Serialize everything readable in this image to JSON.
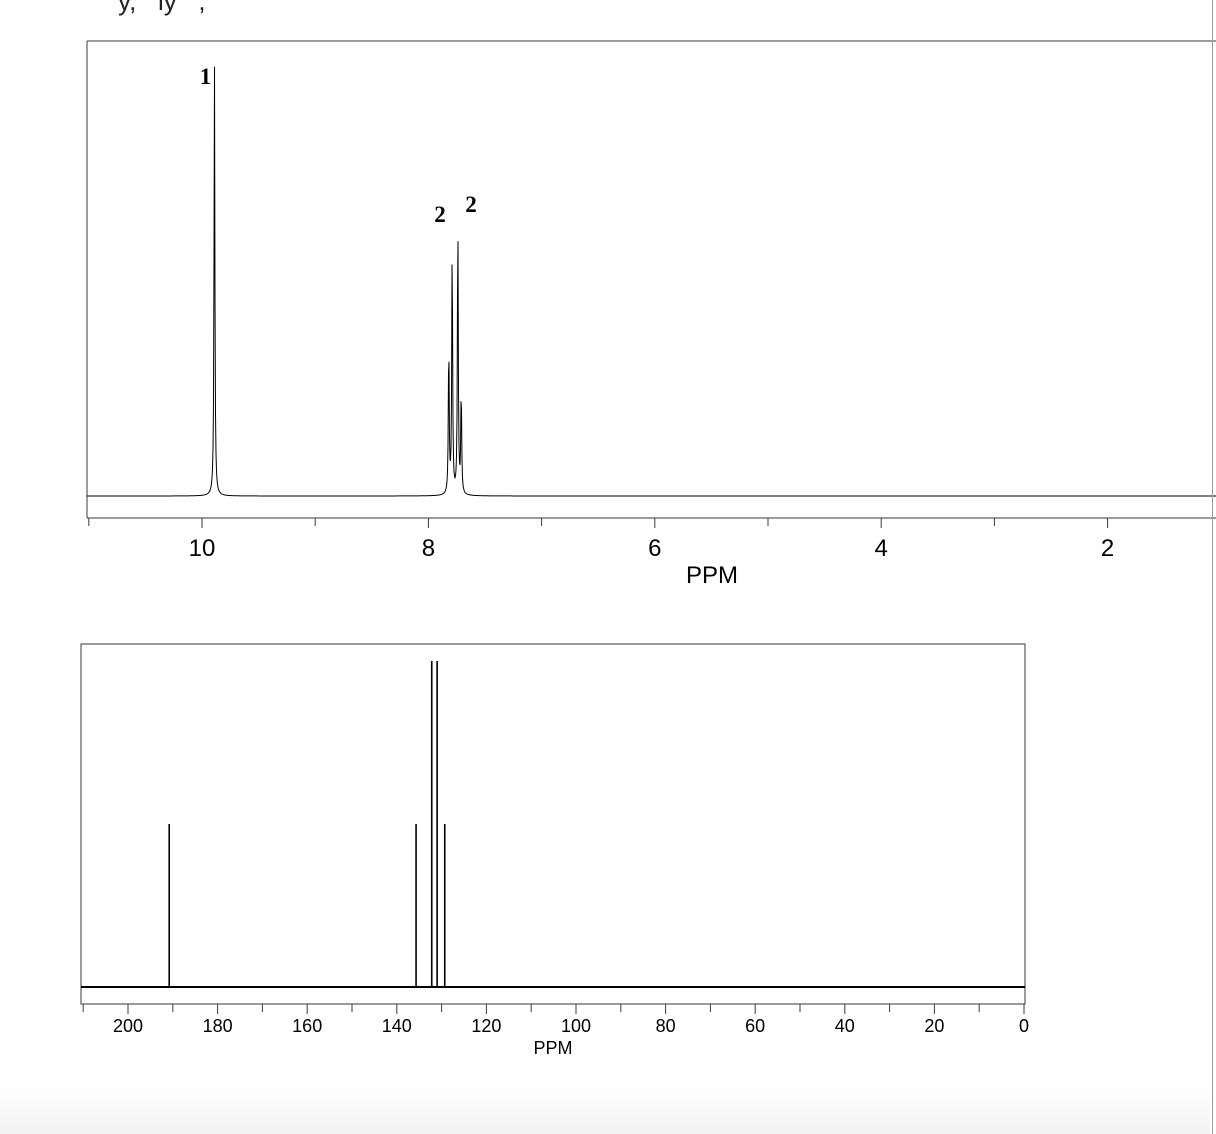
{
  "header_fragment": "y,   ly   ,",
  "colors": {
    "line": "#000000",
    "frame": "#3a3a3a",
    "background": "#ffffff"
  },
  "chart_data": [
    {
      "type": "line",
      "spectrum": "1H NMR",
      "xlabel": "PPM",
      "ylabel": "",
      "x_reversed": true,
      "xlim": [
        11.0,
        0.0
      ],
      "ylim": [
        0,
        1.0
      ],
      "major_ticks": [
        10,
        8,
        6,
        4,
        2
      ],
      "tick_labels": [
        "10",
        "8",
        "6",
        "4",
        "2"
      ],
      "minor_ticks": [
        11,
        9,
        7,
        5,
        3,
        1
      ],
      "peaks": [
        {
          "ppm": 9.89,
          "height": 1.0
        },
        {
          "ppm": 7.82,
          "height": 0.35
        },
        {
          "ppm": 7.79,
          "height": 0.58
        },
        {
          "ppm": 7.74,
          "height": 0.64
        },
        {
          "ppm": 7.71,
          "height": 0.24
        }
      ],
      "integrations": [
        {
          "ppm": 9.89,
          "label": "1"
        },
        {
          "ppm": 7.8,
          "label": "2"
        },
        {
          "ppm": 7.73,
          "label": "2"
        }
      ]
    },
    {
      "type": "bar",
      "spectrum": "13C NMR",
      "xlabel": "PPM",
      "ylabel": "",
      "x_reversed": true,
      "xlim": [
        210,
        0
      ],
      "ylim": [
        0,
        1.0
      ],
      "major_ticks": [
        200,
        180,
        160,
        140,
        120,
        100,
        80,
        60,
        40,
        20,
        0
      ],
      "tick_labels": [
        "200",
        "180",
        "160",
        "140",
        "120",
        "100",
        "80",
        "60",
        "40",
        "20",
        "0"
      ],
      "minor_ticks": [
        210,
        190,
        170,
        150,
        130,
        110,
        90,
        70,
        50,
        30,
        10
      ],
      "peaks": [
        {
          "ppm": 190.8,
          "height": 0.5
        },
        {
          "ppm": 135.7,
          "height": 0.5
        },
        {
          "ppm": 132.2,
          "height": 1.0
        },
        {
          "ppm": 131.0,
          "height": 1.0
        },
        {
          "ppm": 129.3,
          "height": 0.5
        }
      ]
    }
  ]
}
